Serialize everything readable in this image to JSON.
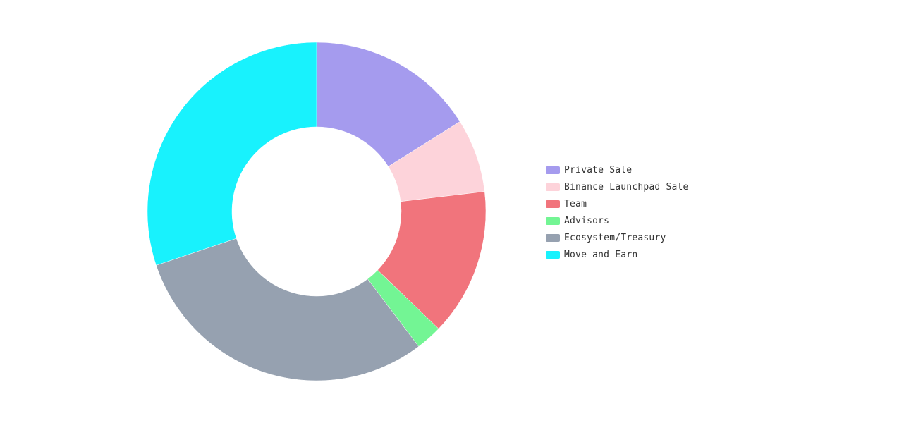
{
  "chart_data": {
    "type": "pie",
    "hole": 0.5,
    "direction": "clockwise",
    "start_angle_deg": 0,
    "legend_position": "right",
    "categories": [
      "Private Sale",
      "Binance Launchpad Sale",
      "Team",
      "Advisors",
      "Ecosystem/Treasury",
      "Move and Earn"
    ],
    "values": [
      16,
      7,
      14,
      2.5,
      30,
      30
    ],
    "colors": [
      "#a59bee",
      "#fdd3da",
      "#f1747c",
      "#73f594",
      "#96a1b0",
      "#18f2fd"
    ]
  }
}
